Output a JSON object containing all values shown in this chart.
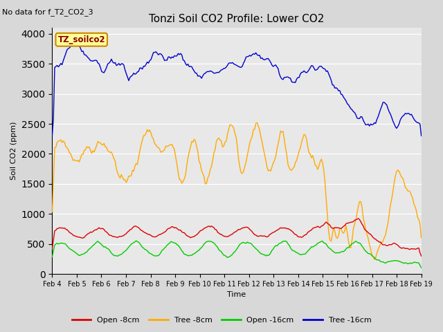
{
  "title": "Tonzi Soil CO2 Profile: Lower CO2",
  "no_data_text": "No data for f_T2_CO2_3",
  "source_label": "TZ_soilco2",
  "ylabel": "Soil CO2 (ppm)",
  "xlabel": "Time",
  "ylim": [
    0,
    4100
  ],
  "fig_bg": "#d8d8d8",
  "plot_bg": "#e8e8e8",
  "x_tick_labels": [
    "Feb 4",
    "Feb 5",
    "Feb 6",
    "Feb 7",
    "Feb 8",
    "Feb 9",
    "Feb 10",
    "Feb 11",
    "Feb 12",
    "Feb 13",
    "Feb 14",
    "Feb 15",
    "Feb 16",
    "Feb 17",
    "Feb 18",
    "Feb 19"
  ],
  "legend_entries": [
    "Open -8cm",
    "Tree -8cm",
    "Open -16cm",
    "Tree -16cm"
  ],
  "legend_colors": [
    "#dd0000",
    "#ffaa00",
    "#00cc00",
    "#0000cc"
  ],
  "line_colors": {
    "open_8cm": "#dd0000",
    "tree_8cm": "#ffaa00",
    "open_16cm": "#00cc00",
    "tree_16cm": "#0000cc"
  },
  "title_fontsize": 11,
  "label_fontsize": 8,
  "tick_fontsize": 7,
  "legend_fontsize": 8
}
